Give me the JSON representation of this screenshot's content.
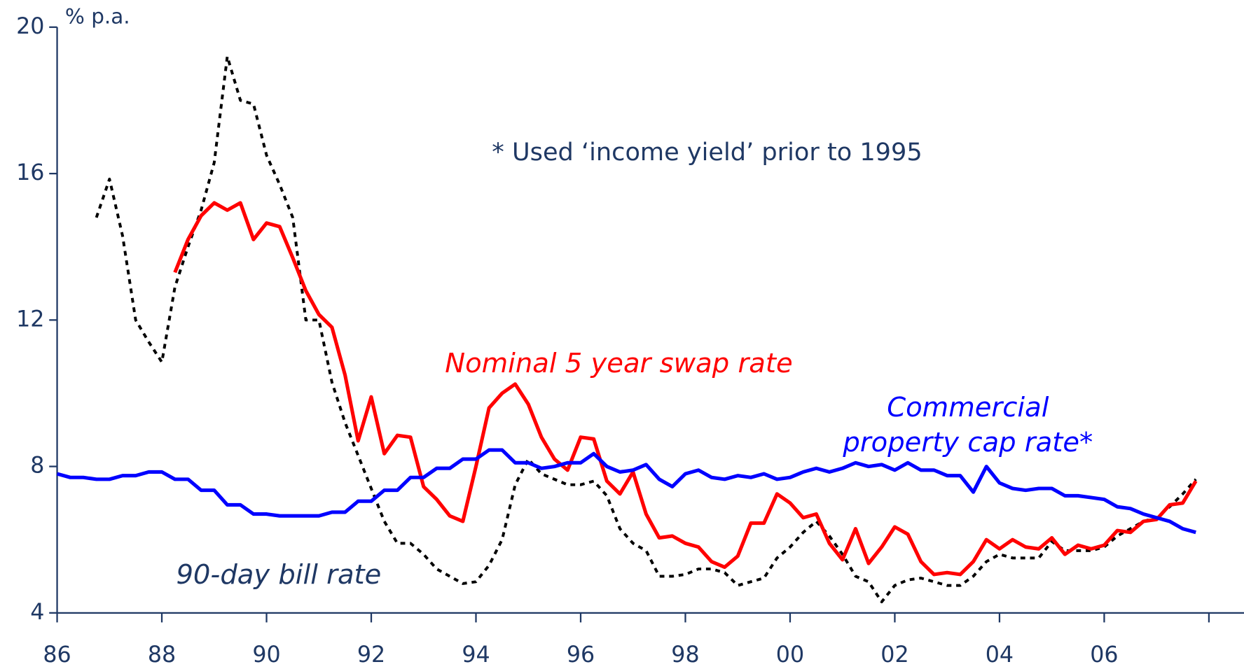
{
  "chart_data": {
    "type": "line",
    "y_axis_label": "% p.a.",
    "annotation": "* Used ‘income yield’ prior to 1995",
    "xlim": [
      1986,
      2008.67
    ],
    "xticks": [
      {
        "value": 1986,
        "label": "86"
      },
      {
        "value": 1988,
        "label": "88"
      },
      {
        "value": 1990,
        "label": "90"
      },
      {
        "value": 1992,
        "label": "92"
      },
      {
        "value": 1994,
        "label": "94"
      },
      {
        "value": 1996,
        "label": "96"
      },
      {
        "value": 1998,
        "label": "98"
      },
      {
        "value": 2000,
        "label": "00"
      },
      {
        "value": 2002,
        "label": "02"
      },
      {
        "value": 2004,
        "label": "04"
      },
      {
        "value": 2006,
        "label": "06"
      },
      {
        "value": 2008,
        "label": null
      }
    ],
    "ylim": [
      4,
      20
    ],
    "yticks": [
      4,
      8,
      12,
      16,
      20
    ],
    "x": [
      1986,
      1986.25,
      1986.5,
      1986.75,
      1987,
      1987.25,
      1987.5,
      1987.75,
      1988,
      1988.25,
      1988.5,
      1988.75,
      1989,
      1989.25,
      1989.5,
      1989.75,
      1990,
      1990.25,
      1990.5,
      1990.75,
      1991,
      1991.25,
      1991.5,
      1991.75,
      1992,
      1992.25,
      1992.5,
      1992.75,
      1993,
      1993.25,
      1993.5,
      1993.75,
      1994,
      1994.25,
      1994.5,
      1994.75,
      1995,
      1995.25,
      1995.5,
      1995.75,
      1996,
      1996.25,
      1996.5,
      1996.75,
      1997,
      1997.25,
      1997.5,
      1997.75,
      1998,
      1998.25,
      1998.5,
      1998.75,
      1999,
      1999.25,
      1999.5,
      1999.75,
      2000,
      2000.25,
      2000.5,
      2000.75,
      2001,
      2001.25,
      2001.5,
      2001.75,
      2002,
      2002.25,
      2002.5,
      2002.75,
      2003,
      2003.25,
      2003.5,
      2003.75,
      2004,
      2004.25,
      2004.5,
      2004.75,
      2005,
      2005.25,
      2005.5,
      2005.75,
      2006,
      2006.25,
      2006.5,
      2006.75,
      2007,
      2007.25,
      2007.5,
      2007.75
    ],
    "series": [
      {
        "name": "90-day bill rate",
        "color": "#000000",
        "dashed": true,
        "values": [
          null,
          null,
          null,
          14.8,
          15.85,
          14.3,
          12.0,
          11.4,
          10.85,
          12.9,
          14.0,
          15.0,
          16.3,
          19.2,
          18.0,
          17.9,
          16.5,
          15.7,
          14.8,
          12.0,
          12.0,
          10.3,
          9.2,
          8.3,
          7.4,
          6.5,
          5.9,
          5.9,
          5.6,
          5.2,
          5.0,
          4.8,
          4.85,
          5.3,
          6.0,
          7.5,
          8.2,
          7.8,
          7.65,
          7.5,
          7.5,
          7.6,
          7.2,
          6.3,
          5.9,
          5.7,
          5.0,
          5.0,
          5.05,
          5.2,
          5.2,
          5.1,
          4.75,
          4.85,
          4.95,
          5.5,
          5.8,
          6.2,
          6.5,
          6.1,
          5.6,
          5.0,
          4.85,
          4.3,
          4.75,
          4.9,
          4.95,
          4.85,
          4.75,
          4.75,
          5.0,
          5.4,
          5.6,
          5.5,
          5.5,
          5.5,
          5.95,
          5.7,
          5.7,
          5.7,
          5.8,
          6.1,
          6.3,
          6.5,
          6.6,
          6.9,
          7.25,
          7.65
        ]
      },
      {
        "name": "Nominal 5 year swap rate",
        "color": "#ff0000",
        "values": [
          null,
          null,
          null,
          null,
          null,
          null,
          null,
          null,
          null,
          13.3,
          14.2,
          14.85,
          15.2,
          15.0,
          15.2,
          14.2,
          14.65,
          14.55,
          13.7,
          12.8,
          12.15,
          11.8,
          10.5,
          8.7,
          9.9,
          8.35,
          8.85,
          8.8,
          7.45,
          7.1,
          6.65,
          6.5,
          8.0,
          9.6,
          10.0,
          10.25,
          9.7,
          8.8,
          8.2,
          7.9,
          8.8,
          8.75,
          7.6,
          7.25,
          7.85,
          6.7,
          6.05,
          6.1,
          5.9,
          5.8,
          5.4,
          5.25,
          5.55,
          6.45,
          6.45,
          7.25,
          7.0,
          6.6,
          6.7,
          5.9,
          5.45,
          6.3,
          5.35,
          5.8,
          6.35,
          6.15,
          5.4,
          5.05,
          5.1,
          5.05,
          5.4,
          6.0,
          5.75,
          6.0,
          5.8,
          5.75,
          6.05,
          5.6,
          5.85,
          5.75,
          5.85,
          6.25,
          6.2,
          6.5,
          6.55,
          6.95,
          7.0,
          7.6
        ]
      },
      {
        "name": "Commercial property cap rate*",
        "color": "#0000ff",
        "values": [
          7.8,
          7.7,
          7.7,
          7.65,
          7.65,
          7.75,
          7.75,
          7.85,
          7.85,
          7.65,
          7.65,
          7.35,
          7.35,
          6.95,
          6.95,
          6.7,
          6.7,
          6.65,
          6.65,
          6.65,
          6.65,
          6.75,
          6.75,
          7.05,
          7.05,
          7.35,
          7.35,
          7.7,
          7.7,
          7.95,
          7.95,
          8.2,
          8.2,
          8.45,
          8.45,
          8.1,
          8.1,
          7.95,
          8.0,
          8.1,
          8.1,
          8.35,
          8.0,
          7.85,
          7.9,
          8.05,
          7.65,
          7.45,
          7.8,
          7.9,
          7.7,
          7.65,
          7.75,
          7.7,
          7.8,
          7.65,
          7.7,
          7.85,
          7.95,
          7.85,
          7.95,
          8.1,
          8.0,
          8.05,
          7.9,
          8.1,
          7.9,
          7.9,
          7.75,
          7.75,
          7.3,
          8.0,
          7.55,
          7.4,
          7.35,
          7.4,
          7.4,
          7.2,
          7.2,
          7.15,
          7.1,
          6.9,
          6.85,
          6.7,
          6.6,
          6.5,
          6.3,
          6.2
        ]
      }
    ]
  }
}
